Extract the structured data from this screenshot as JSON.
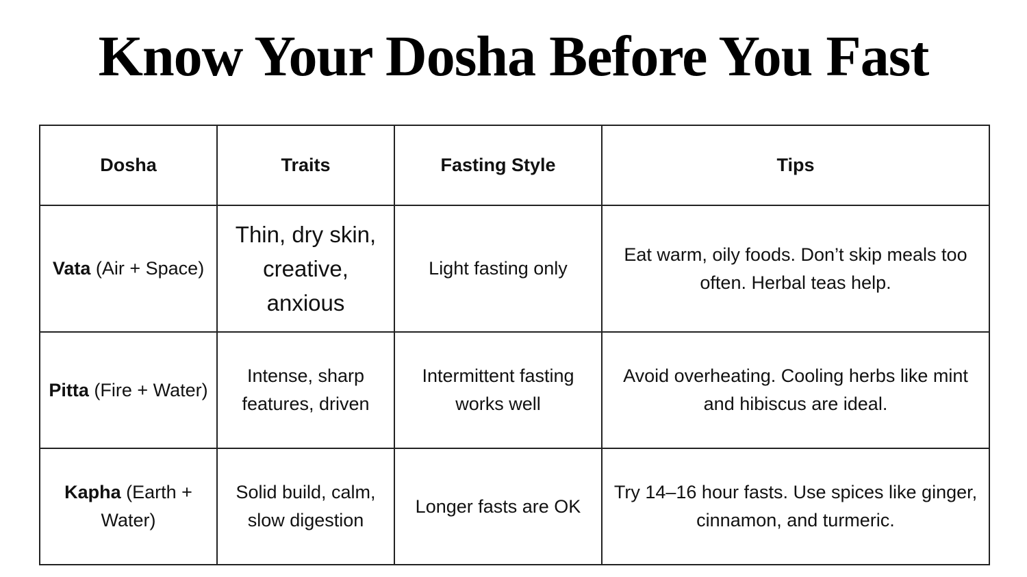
{
  "title": "Know Your Dosha Before You Fast",
  "table": {
    "headers": [
      "Dosha",
      "Traits",
      "Fasting Style",
      "Tips"
    ],
    "rows": [
      [
        {
          "name": "Vata",
          "element": "(Air + Space)"
        },
        "Thin, dry skin, creative, anxious",
        "Light fasting only",
        "Eat warm, oily foods. Don’t skip meals too often. Herbal teas help."
      ],
      [
        {
          "name": "Pitta",
          "element": "(Fire + Water)"
        },
        "Intense, sharp features, driven",
        "Intermittent fasting works well",
        "Avoid overheating. Cooling herbs like mint and hibiscus are ideal."
      ],
      [
        {
          "name": "Kapha",
          "element": "(Earth + Water)"
        },
        "Solid build, calm, slow digestion",
        "Longer fasts are OK",
        "Try 14–16 hour fasts. Use spices like ginger, cinnamon, and turmeric."
      ]
    ]
  }
}
